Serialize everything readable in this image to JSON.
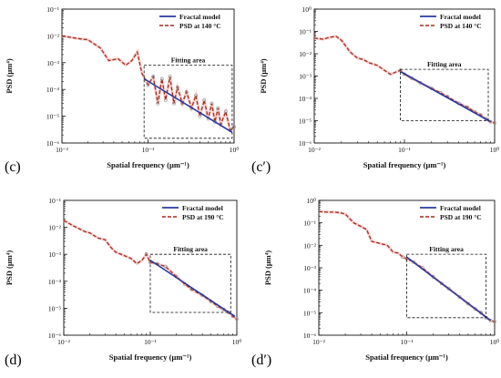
{
  "colors": {
    "fractal": "#2b3aa0",
    "psd": "#a52a1a",
    "markers": "#888888",
    "axis": "#111111"
  },
  "chart_data": [
    {
      "type": "line",
      "panel_label": "(c)",
      "xlabel": "Spatial frequency (μm⁻¹)",
      "ylabel": "PSD (μm⁴)",
      "x_scale": "log",
      "y_scale": "log",
      "xlim": [
        0.01,
        1
      ],
      "ylim": [
        1e-06,
        0.1
      ],
      "xticks": [
        "10⁻²",
        "10⁻¹",
        "10⁰"
      ],
      "yticks": [
        "10⁻⁶",
        "10⁻⁵",
        "10⁻⁴",
        "10⁻³",
        "10⁻²",
        "10⁻¹"
      ],
      "legend": {
        "position": "top-right",
        "entries": [
          "Fractal model",
          "PSD at 140 °C"
        ]
      },
      "fitting_area": {
        "label": "Fitting area",
        "x": [
          0.09,
          0.95
        ],
        "y": [
          1.5e-06,
          0.0008
        ]
      },
      "series": [
        {
          "name": "PSD at 140 °C",
          "style": "dashed",
          "x": [
            0.01,
            0.015,
            0.02,
            0.028,
            0.035,
            0.045,
            0.055,
            0.065,
            0.075,
            0.085,
            0.1,
            0.115,
            0.13,
            0.145,
            0.16,
            0.18,
            0.2,
            0.22,
            0.25,
            0.28,
            0.32,
            0.36,
            0.4,
            0.45,
            0.5,
            0.55,
            0.6,
            0.65,
            0.7,
            0.8,
            0.9,
            1.0
          ],
          "y": [
            0.01,
            0.008,
            0.0072,
            0.0035,
            0.0012,
            0.0014,
            0.0008,
            0.0012,
            0.0025,
            0.0004,
            0.00015,
            0.0003,
            3e-05,
            0.00025,
            4e-05,
            0.0003,
            3e-05,
            0.00012,
            3e-05,
            8e-05,
            2e-05,
            6e-05,
            1e-05,
            4e-05,
            8e-06,
            3e-05,
            6e-06,
            2e-05,
            5e-06,
            1.5e-05,
            3e-06,
            4e-06
          ]
        },
        {
          "name": "Fractal model",
          "style": "solid",
          "x": [
            0.09,
            0.95
          ],
          "y": [
            0.00025,
            2.5e-06
          ]
        }
      ]
    },
    {
      "type": "line",
      "panel_label": "(c′)",
      "xlabel": "Spatial frequency (μm⁻¹)",
      "ylabel": "PSD (μm⁴)",
      "x_scale": "log",
      "y_scale": "log",
      "xlim": [
        0.01,
        1
      ],
      "ylim": [
        1e-06,
        1
      ],
      "xticks": [
        "10⁻²",
        "10⁻¹",
        "10⁰"
      ],
      "yticks": [
        "10⁻⁶",
        "10⁻⁵",
        "10⁻⁴",
        "10⁻³",
        "10⁻²",
        "10⁻¹",
        "10⁰"
      ],
      "legend": {
        "position": "top-right",
        "entries": [
          "Fractal model",
          "PSD at 140 °C"
        ]
      },
      "fitting_area": {
        "label": "Fitting area",
        "x": [
          0.09,
          0.85
        ],
        "y": [
          1e-05,
          0.002
        ]
      },
      "series": [
        {
          "name": "PSD at 140 °C",
          "style": "dashed",
          "x": [
            0.01,
            0.0125,
            0.015,
            0.0175,
            0.02,
            0.025,
            0.03,
            0.035,
            0.04,
            0.05,
            0.06,
            0.07,
            0.08,
            0.09,
            0.1,
            0.12,
            0.15,
            0.2,
            0.25,
            0.3,
            0.4,
            0.5,
            0.6,
            0.7,
            0.8,
            0.9,
            1.0
          ],
          "y": [
            0.05,
            0.045,
            0.055,
            0.06,
            0.04,
            0.012,
            0.0065,
            0.0055,
            0.004,
            0.003,
            0.0018,
            0.0012,
            0.0015,
            0.0018,
            0.0012,
            0.0008,
            0.0005,
            0.00028,
            0.00018,
            0.00012,
            6e-05,
            4e-05,
            2.5e-05,
            1.8e-05,
            1.2e-05,
            9e-06,
            8e-06
          ]
        },
        {
          "name": "Fractal model",
          "style": "solid",
          "x": [
            0.09,
            0.9
          ],
          "y": [
            0.0016,
            9e-06
          ]
        }
      ]
    },
    {
      "type": "line",
      "panel_label": "(d)",
      "xlabel": "Spatial frequency (μm⁻¹)",
      "ylabel": "PSD (μm⁴)",
      "x_scale": "log",
      "y_scale": "log",
      "xlim": [
        0.01,
        1
      ],
      "ylim": [
        1e-06,
        0.1
      ],
      "xticks": [
        "10⁻²",
        "10⁻¹",
        "10⁰"
      ],
      "yticks": [
        "10⁻⁶",
        "10⁻⁵",
        "10⁻⁴",
        "10⁻³",
        "10⁻²",
        "10⁻¹"
      ],
      "legend": {
        "position": "top-right",
        "entries": [
          "Fractal model",
          "PSD at 190 °C"
        ]
      },
      "fitting_area": {
        "label": "Fitting area",
        "x": [
          0.1,
          0.85
        ],
        "y": [
          7e-06,
          0.001
        ]
      },
      "series": [
        {
          "name": "PSD at 190 °C",
          "style": "dashed",
          "x": [
            0.01,
            0.0125,
            0.015,
            0.0175,
            0.02,
            0.025,
            0.03,
            0.035,
            0.04,
            0.05,
            0.06,
            0.07,
            0.08,
            0.09,
            0.1,
            0.12,
            0.15,
            0.2,
            0.25,
            0.3,
            0.4,
            0.5,
            0.6,
            0.7,
            0.8,
            0.9,
            1.0
          ],
          "y": [
            0.018,
            0.012,
            0.009,
            0.007,
            0.0062,
            0.004,
            0.0035,
            0.0018,
            0.0012,
            0.0009,
            0.0007,
            0.00045,
            0.0006,
            0.001,
            0.0005,
            0.00045,
            0.00035,
            0.00015,
            8e-05,
            5e-05,
            3e-05,
            1.8e-05,
            1.2e-05,
            9e-06,
            7e-06,
            5e-06,
            4e-06
          ]
        },
        {
          "name": "Fractal model",
          "style": "solid",
          "x": [
            0.1,
            0.95
          ],
          "y": [
            0.0006,
            5e-06
          ]
        }
      ]
    },
    {
      "type": "line",
      "panel_label": "(d′)",
      "xlabel": "Spatial frequency (μm⁻¹)",
      "ylabel": "PSD (μm⁴)",
      "x_scale": "log",
      "y_scale": "log",
      "xlim": [
        0.01,
        1
      ],
      "ylim": [
        1e-06,
        1
      ],
      "xticks": [
        "10⁻²",
        "10⁻¹",
        "10⁰"
      ],
      "yticks": [
        "10⁻⁶",
        "10⁻⁵",
        "10⁻⁴",
        "10⁻³",
        "10⁻²",
        "10⁻¹",
        "10⁰"
      ],
      "legend": {
        "position": "top-right",
        "entries": [
          "Fractal model",
          "PSD at 190 °C"
        ]
      },
      "fitting_area": {
        "label": "Fitting area",
        "x": [
          0.1,
          0.8
        ],
        "y": [
          6e-06,
          0.004
        ]
      },
      "series": [
        {
          "name": "PSD at 190 °C",
          "style": "dashed",
          "x": [
            0.01,
            0.0125,
            0.015,
            0.0175,
            0.02,
            0.025,
            0.03,
            0.035,
            0.04,
            0.05,
            0.06,
            0.07,
            0.08,
            0.09,
            0.1,
            0.12,
            0.15,
            0.2,
            0.25,
            0.3,
            0.4,
            0.5,
            0.6,
            0.7,
            0.8,
            0.9,
            1.0
          ],
          "y": [
            0.32,
            0.3,
            0.3,
            0.28,
            0.25,
            0.1,
            0.07,
            0.05,
            0.015,
            0.012,
            0.01,
            0.005,
            0.0045,
            0.003,
            0.0025,
            0.0018,
            0.001,
            0.0004,
            0.0002,
            0.00012,
            5e-05,
            2.5e-05,
            1.5e-05,
            1e-05,
            6e-06,
            4.5e-06,
            4e-06
          ]
        },
        {
          "name": "Fractal model",
          "style": "solid",
          "x": [
            0.1,
            0.9
          ],
          "y": [
            0.003,
            4.5e-06
          ]
        }
      ]
    }
  ]
}
